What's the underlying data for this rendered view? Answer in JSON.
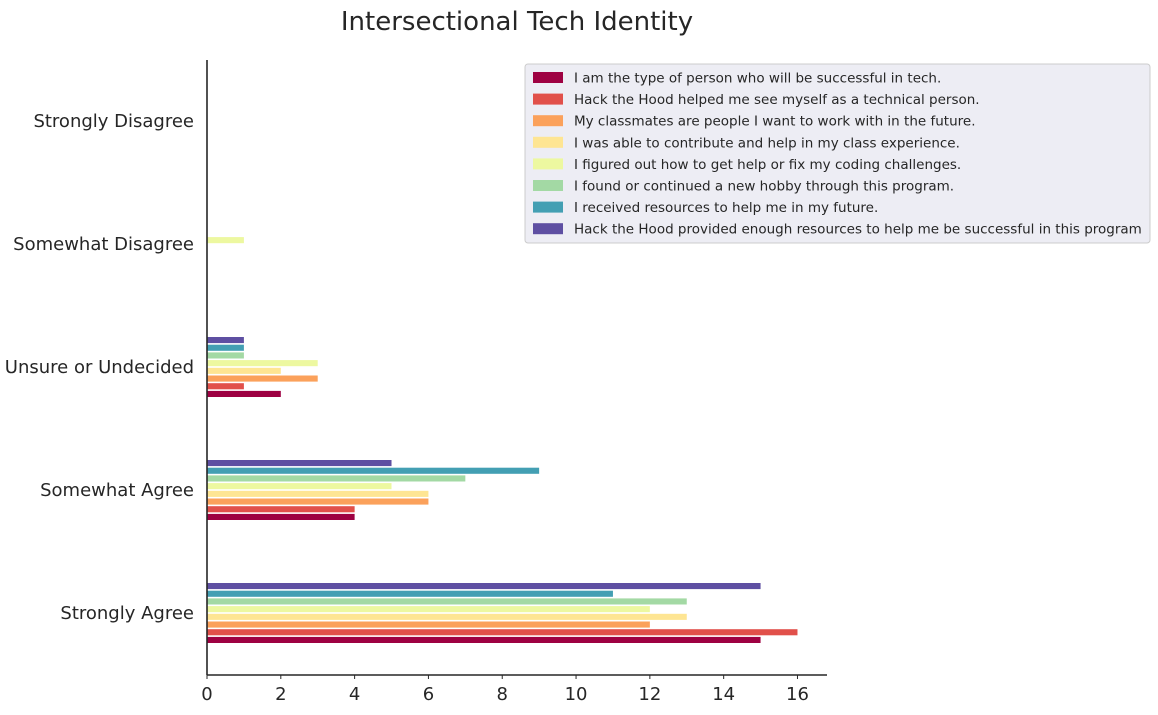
{
  "chart_data": {
    "type": "bar",
    "orientation": "horizontal",
    "title": "Intersectional Tech Identity",
    "xlabel": "",
    "ylabel": "",
    "xlim": [
      0,
      16.8
    ],
    "xticks": [
      0,
      2,
      4,
      6,
      8,
      10,
      12,
      14,
      16
    ],
    "grid": false,
    "legend_position": "top-right",
    "categories": [
      "Strongly Agree",
      "Somewhat Agree",
      "Unsure or Undecided",
      "Somewhat Disagree",
      "Strongly Disagree"
    ],
    "series": [
      {
        "name": "I am the type of person who will be successful in tech.",
        "color": "#9e0142",
        "values": [
          15,
          4,
          2,
          0,
          0
        ]
      },
      {
        "name": "Hack the Hood helped me see myself as a technical person.",
        "color": "#e1504a",
        "values": [
          16,
          4,
          1,
          0,
          0
        ]
      },
      {
        "name": "My classmates are people I want to work with in the future.",
        "color": "#fba15b",
        "values": [
          12,
          6,
          3,
          0,
          0
        ]
      },
      {
        "name": "I was able to contribute and help in my class experience.",
        "color": "#fee593",
        "values": [
          13,
          6,
          2,
          0,
          0
        ]
      },
      {
        "name": "I figured out how to get help or fix my coding challenges.",
        "color": "#edf8a0",
        "values": [
          12,
          5,
          3,
          1,
          0
        ]
      },
      {
        "name": "I found or continued a new hobby through this program.",
        "color": "#a3d9a4",
        "values": [
          13,
          7,
          1,
          0,
          0
        ]
      },
      {
        "name": "I received resources to help me in my future.",
        "color": "#439fb3",
        "values": [
          11,
          9,
          1,
          0,
          0
        ]
      },
      {
        "name": "Hack the Hood provided enough resources to help me be successful in this program",
        "color": "#5e4fa2",
        "values": [
          15,
          5,
          1,
          0,
          0
        ]
      }
    ]
  }
}
